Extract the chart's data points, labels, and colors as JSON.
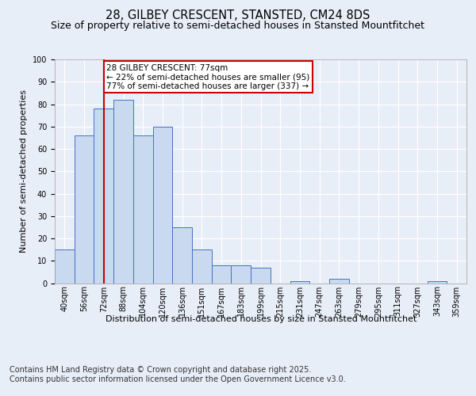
{
  "title": "28, GILBEY CRESCENT, STANSTED, CM24 8DS",
  "subtitle": "Size of property relative to semi-detached houses in Stansted Mountfitchet",
  "xlabel": "Distribution of semi-detached houses by size in Stansted Mountfitchet",
  "ylabel": "Number of semi-detached properties",
  "categories": [
    "40sqm",
    "56sqm",
    "72sqm",
    "88sqm",
    "104sqm",
    "120sqm",
    "136sqm",
    "151sqm",
    "167sqm",
    "183sqm",
    "199sqm",
    "215sqm",
    "231sqm",
    "247sqm",
    "263sqm",
    "279sqm",
    "295sqm",
    "311sqm",
    "327sqm",
    "343sqm",
    "359sqm"
  ],
  "values": [
    15,
    66,
    78,
    82,
    66,
    70,
    25,
    15,
    8,
    8,
    7,
    0,
    1,
    0,
    2,
    0,
    0,
    0,
    0,
    1,
    0
  ],
  "bar_color": "#c9d9ef",
  "bar_edge_color": "#4472c4",
  "background_color": "#e8eef8",
  "plot_bg_color": "#e8eef8",
  "grid_color": "#ffffff",
  "vline_color": "#cc0000",
  "vline_x": 2,
  "annotation_title": "28 GILBEY CRESCENT: 77sqm",
  "annotation_line1": "← 22% of semi-detached houses are smaller (95)",
  "annotation_line2": "77% of semi-detached houses are larger (337) →",
  "annotation_box_color": "#ffffff",
  "annotation_border_color": "#cc0000",
  "ylim": [
    0,
    100
  ],
  "yticks": [
    0,
    10,
    20,
    30,
    40,
    50,
    60,
    70,
    80,
    90,
    100
  ],
  "footer_line1": "Contains HM Land Registry data © Crown copyright and database right 2025.",
  "footer_line2": "Contains public sector information licensed under the Open Government Licence v3.0.",
  "title_fontsize": 10.5,
  "subtitle_fontsize": 9,
  "axis_label_fontsize": 8,
  "tick_fontsize": 7,
  "annotation_fontsize": 7.5,
  "footer_fontsize": 7
}
